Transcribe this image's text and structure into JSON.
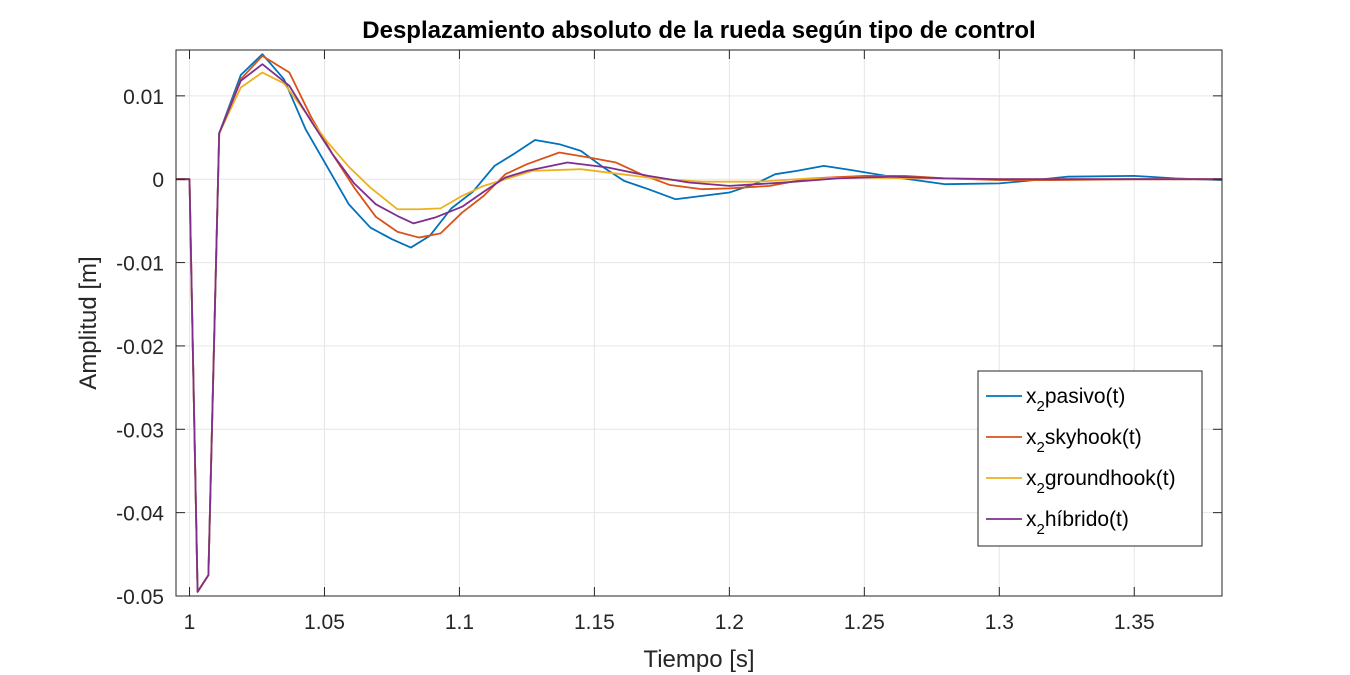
{
  "chart_data": {
    "type": "line",
    "title": "Desplazamiento absoluto de la rueda según tipo de control",
    "xlabel": "Tiempo [s]",
    "ylabel": "Amplitud [m]",
    "xlim": [
      0.995,
      1.3825
    ],
    "ylim": [
      -0.05,
      0.0155
    ],
    "xticks": [
      1,
      1.05,
      1.1,
      1.15,
      1.2,
      1.25,
      1.3,
      1.35
    ],
    "xtick_labels": [
      "1",
      "1.05",
      "1.1",
      "1.15",
      "1.2",
      "1.25",
      "1.3",
      "1.35"
    ],
    "yticks": [
      0.01,
      0,
      -0.01,
      -0.02,
      -0.03,
      -0.04,
      -0.05
    ],
    "ytick_labels": [
      "0.01",
      "0",
      "-0.01",
      "-0.02",
      "-0.03",
      "-0.04",
      "-0.05"
    ],
    "grid": true,
    "legend_position": "bottom-right",
    "series": [
      {
        "name": "x2pasivo(t)",
        "name_parts": {
          "base": "x",
          "sub": "2",
          "rest": "pasivo(t)"
        },
        "color": "#0072BD",
        "x": [
          0.995,
          1.0,
          1.003,
          1.007,
          1.011,
          1.019,
          1.027,
          1.035,
          1.043,
          1.051,
          1.059,
          1.067,
          1.075,
          1.082,
          1.089,
          1.097,
          1.105,
          1.113,
          1.12,
          1.128,
          1.137,
          1.145,
          1.153,
          1.161,
          1.17,
          1.18,
          1.19,
          1.2,
          1.21,
          1.217,
          1.225,
          1.235,
          1.245,
          1.26,
          1.28,
          1.3,
          1.31,
          1.325,
          1.35,
          1.365,
          1.3825
        ],
        "y": [
          0.0,
          0.0,
          -0.0495,
          -0.0475,
          0.0055,
          0.0125,
          0.015,
          0.012,
          0.006,
          0.0015,
          -0.003,
          -0.0058,
          -0.0072,
          -0.0082,
          -0.0068,
          -0.0035,
          -0.0015,
          0.0016,
          0.003,
          0.0047,
          0.0042,
          0.0034,
          0.0015,
          -0.0002,
          -0.0012,
          -0.0024,
          -0.002,
          -0.0016,
          -0.0005,
          0.0006,
          0.001,
          0.0016,
          0.0011,
          0.0003,
          -0.0006,
          -0.0005,
          -0.0002,
          0.0003,
          0.0004,
          0.0001,
          -0.0001
        ]
      },
      {
        "name": "x2skyhook(t)",
        "name_parts": {
          "base": "x",
          "sub": "2",
          "rest": "skyhook(t)"
        },
        "color": "#D95319",
        "x": [
          0.995,
          1.0,
          1.003,
          1.007,
          1.011,
          1.019,
          1.027,
          1.037,
          1.045,
          1.053,
          1.061,
          1.069,
          1.077,
          1.085,
          1.093,
          1.101,
          1.109,
          1.117,
          1.125,
          1.137,
          1.148,
          1.158,
          1.168,
          1.178,
          1.19,
          1.2,
          1.215,
          1.23,
          1.25,
          1.265,
          1.28,
          1.3,
          1.32,
          1.35,
          1.3825
        ],
        "y": [
          0.0,
          0.0,
          -0.0495,
          -0.0475,
          0.0055,
          0.012,
          0.0148,
          0.0128,
          0.0075,
          0.003,
          -0.001,
          -0.0045,
          -0.0063,
          -0.007,
          -0.0065,
          -0.004,
          -0.002,
          0.0006,
          0.0018,
          0.0032,
          0.0026,
          0.002,
          0.0005,
          -0.0007,
          -0.0012,
          -0.0011,
          -0.0008,
          0.0001,
          0.0004,
          0.0004,
          0.0001,
          -0.0001,
          -0.0001,
          0.0,
          0.0
        ]
      },
      {
        "name": "x2groundhook(t)",
        "name_parts": {
          "base": "x",
          "sub": "2",
          "rest": "groundhook(t)"
        },
        "color": "#EDB120",
        "x": [
          0.995,
          1.0,
          1.003,
          1.007,
          1.011,
          1.019,
          1.027,
          1.035,
          1.043,
          1.051,
          1.059,
          1.067,
          1.077,
          1.085,
          1.093,
          1.101,
          1.109,
          1.117,
          1.127,
          1.145,
          1.16,
          1.175,
          1.19,
          1.21,
          1.23,
          1.25,
          1.27,
          1.3,
          1.35,
          1.3825
        ],
        "y": [
          0.0,
          0.0,
          -0.0495,
          -0.0475,
          0.0055,
          0.011,
          0.0128,
          0.0115,
          0.008,
          0.0045,
          0.0015,
          -0.001,
          -0.0036,
          -0.0036,
          -0.0035,
          -0.002,
          -0.0008,
          0.0,
          0.001,
          0.0012,
          0.0006,
          0.0,
          -0.0003,
          -0.0003,
          0.0001,
          0.0002,
          0.0001,
          0.0,
          0.0,
          0.0
        ]
      },
      {
        "name": "x2híbrido(t)",
        "name_parts": {
          "base": "x",
          "sub": "2",
          "rest": "híbrido(t)"
        },
        "color": "#7E2F8E",
        "x": [
          0.995,
          1.0,
          1.003,
          1.007,
          1.011,
          1.019,
          1.027,
          1.037,
          1.045,
          1.053,
          1.061,
          1.069,
          1.077,
          1.083,
          1.091,
          1.101,
          1.109,
          1.117,
          1.125,
          1.14,
          1.155,
          1.17,
          1.185,
          1.2,
          1.22,
          1.24,
          1.26,
          1.28,
          1.3,
          1.35,
          1.3825
        ],
        "y": [
          0.0,
          0.0,
          -0.0495,
          -0.0475,
          0.0055,
          0.0118,
          0.0138,
          0.0112,
          0.007,
          0.003,
          -0.0005,
          -0.003,
          -0.0044,
          -0.0053,
          -0.0046,
          -0.0033,
          -0.0015,
          0.0002,
          0.001,
          0.002,
          0.0014,
          0.0004,
          -0.0004,
          -0.0008,
          -0.0004,
          0.0001,
          0.0003,
          0.0001,
          0.0,
          0.0,
          0.0
        ]
      }
    ]
  }
}
